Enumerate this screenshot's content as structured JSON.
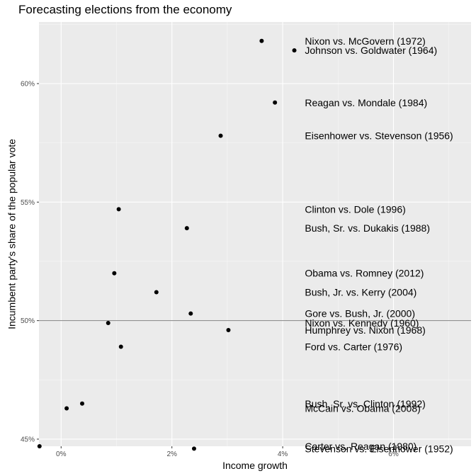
{
  "chart_data": {
    "type": "scatter",
    "title": "Forecasting elections from the economy",
    "xlabel": "Income growth",
    "ylabel": "Incumbent party's share of the popular vote",
    "xlim": [
      -0.4,
      7.4
    ],
    "ylim": [
      44.7,
      62.6
    ],
    "x_ticks": [
      0,
      2,
      4,
      6
    ],
    "x_tick_labels": [
      "0%",
      "2%",
      "4%",
      "6%"
    ],
    "y_ticks": [
      45,
      50,
      55,
      60
    ],
    "y_tick_labels": [
      "45%",
      "50%",
      "55%",
      "60%"
    ],
    "hline": 50,
    "grid": true,
    "label_x": 4.4,
    "points": [
      {
        "x": 3.62,
        "y": 61.8,
        "label": "Nixon vs. McGovern (1972)",
        "label_y": 61.8
      },
      {
        "x": 4.21,
        "y": 61.4,
        "label": "Johnson vs. Goldwater (1964)",
        "label_y": 61.4
      },
      {
        "x": 3.86,
        "y": 59.2,
        "label": "Reagan vs. Mondale (1984)",
        "label_y": 59.2
      },
      {
        "x": 2.88,
        "y": 57.8,
        "label": "Eisenhower vs. Stevenson (1956)",
        "label_y": 57.8
      },
      {
        "x": 1.04,
        "y": 54.7,
        "label": "Clinton vs. Dole (1996)",
        "label_y": 54.7
      },
      {
        "x": 2.27,
        "y": 53.9,
        "label": "Bush, Sr. vs. Dukakis (1988)",
        "label_y": 53.9
      },
      {
        "x": 0.96,
        "y": 52.0,
        "label": "Obama vs. Romney (2012)",
        "label_y": 52.0
      },
      {
        "x": 1.72,
        "y": 51.2,
        "label": "Bush, Jr. vs. Kerry (2004)",
        "label_y": 51.2
      },
      {
        "x": 2.34,
        "y": 50.3,
        "label": "Gore vs. Bush, Jr. (2000)",
        "label_y": 50.3
      },
      {
        "x": 0.85,
        "y": 49.9,
        "label": "Nixon vs. Kennedy (1960)",
        "label_y": 49.9
      },
      {
        "x": 3.02,
        "y": 49.6,
        "label": "Humphrey vs. Nixon (1968)",
        "label_y": 49.6
      },
      {
        "x": 1.08,
        "y": 48.9,
        "label": "Ford vs. Carter (1976)",
        "label_y": 48.9
      },
      {
        "x": 0.38,
        "y": 46.5,
        "label": "Bush, Sr. vs. Clinton (1992)",
        "label_y": 46.5
      },
      {
        "x": 0.1,
        "y": 46.3,
        "label": "McCain vs. Obama (2008)",
        "label_y": 46.3
      },
      {
        "x": -0.39,
        "y": 44.7,
        "label": "Carter vs. Reagan (1980)",
        "label_y": 44.7
      },
      {
        "x": 2.4,
        "y": 44.6,
        "label": "Stevenson vs. Eisenhower (1952)",
        "label_y": 44.6
      }
    ]
  }
}
